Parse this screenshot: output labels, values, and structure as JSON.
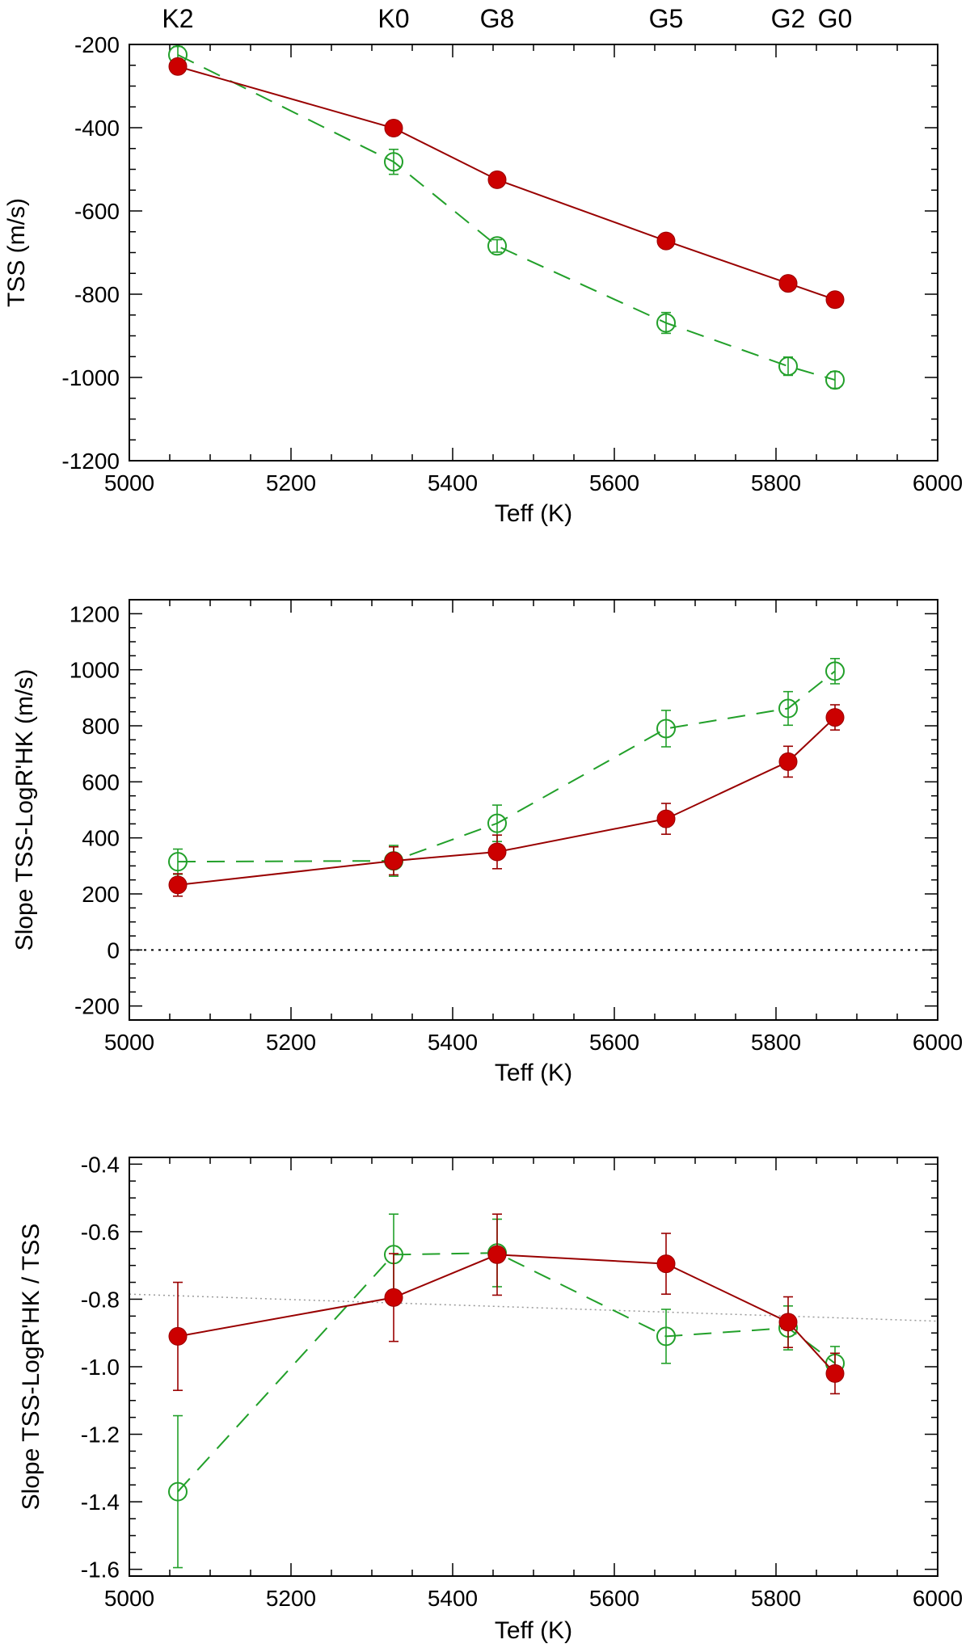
{
  "spectral_types": [
    {
      "label": "K2",
      "teff": 5060
    },
    {
      "label": "K0",
      "teff": 5327
    },
    {
      "label": "G8",
      "teff": 5455
    },
    {
      "label": "G5",
      "teff": 5664
    },
    {
      "label": "G2",
      "teff": 5815
    },
    {
      "label": "G0",
      "teff": 5873
    }
  ],
  "colors": {
    "series1": "#cc0000",
    "series1_line": "#990000",
    "series2": "#22a02a",
    "axes": "#000000",
    "reference_dotted": "#000000",
    "trend_dotted": "#999999"
  },
  "chart_data": [
    {
      "type": "line",
      "xlabel": "Teff (K)",
      "ylabel": "TSS (m/s)",
      "xlim": [
        5000,
        6000
      ],
      "ylim": [
        -1200,
        -200
      ],
      "xticks": [
        5000,
        5200,
        5400,
        5600,
        5800,
        6000
      ],
      "yticks": [
        -1200,
        -1000,
        -800,
        -600,
        -400,
        -200
      ],
      "x": [
        5060,
        5327,
        5455,
        5664,
        5815,
        5873
      ],
      "series": [
        {
          "marker": "filled-circle",
          "line": "solid",
          "color": "#cc0000",
          "values": [
            -253,
            -401,
            -525,
            -672,
            -774,
            -813
          ],
          "errors": [
            5,
            18,
            10,
            10,
            10,
            15
          ]
        },
        {
          "marker": "open-circle",
          "line": "dashed",
          "color": "#22a02a",
          "values": [
            -225,
            -482,
            -684,
            -869,
            -973,
            -1006
          ],
          "errors": [
            20,
            30,
            15,
            25,
            22,
            20
          ]
        }
      ]
    },
    {
      "type": "line",
      "xlabel": "Teff (K)",
      "ylabel": "Slope TSS-LogR'HK (m/s)",
      "xlim": [
        5000,
        6000
      ],
      "ylim": [
        -250,
        1250
      ],
      "xticks": [
        5000,
        5200,
        5400,
        5600,
        5800,
        6000
      ],
      "yticks": [
        -200,
        0,
        200,
        400,
        600,
        800,
        1000,
        1200
      ],
      "reference_line": 0,
      "x": [
        5060,
        5327,
        5455,
        5664,
        5815,
        5873
      ],
      "series": [
        {
          "marker": "filled-circle",
          "line": "solid",
          "color": "#cc0000",
          "values": [
            232,
            318,
            350,
            468,
            672,
            830
          ],
          "errors": [
            40,
            50,
            60,
            55,
            55,
            45
          ]
        },
        {
          "marker": "open-circle",
          "line": "dashed",
          "color": "#22a02a",
          "values": [
            315,
            318,
            452,
            790,
            862,
            995
          ],
          "errors": [
            45,
            55,
            65,
            65,
            60,
            45
          ]
        }
      ]
    },
    {
      "type": "line",
      "xlabel": "Teff (K)",
      "ylabel": "Slope TSS-LogR'HK / TSS",
      "xlim": [
        5000,
        6000
      ],
      "ylim": [
        -1.62,
        -0.38
      ],
      "xticks": [
        5000,
        5200,
        5400,
        5600,
        5800,
        6000
      ],
      "yticks": [
        -1.6,
        -1.4,
        -1.2,
        -1.0,
        -0.8,
        -0.6,
        -0.4
      ],
      "trend_line": {
        "x": [
          5000,
          6000
        ],
        "y": [
          -0.785,
          -0.865
        ]
      },
      "x": [
        5060,
        5327,
        5455,
        5664,
        5815,
        5873
      ],
      "series": [
        {
          "marker": "filled-circle",
          "line": "solid",
          "color": "#cc0000",
          "values": [
            -0.91,
            -0.795,
            -0.668,
            -0.695,
            -0.868,
            -1.02
          ],
          "errors": [
            0.16,
            0.13,
            0.12,
            0.09,
            0.075,
            0.06
          ]
        },
        {
          "marker": "open-circle",
          "line": "dashed",
          "color": "#22a02a",
          "values": [
            -1.37,
            -0.668,
            -0.663,
            -0.91,
            -0.885,
            -0.99
          ],
          "errors": [
            0.225,
            0.12,
            0.1,
            0.08,
            0.065,
            0.05
          ]
        }
      ]
    }
  ]
}
